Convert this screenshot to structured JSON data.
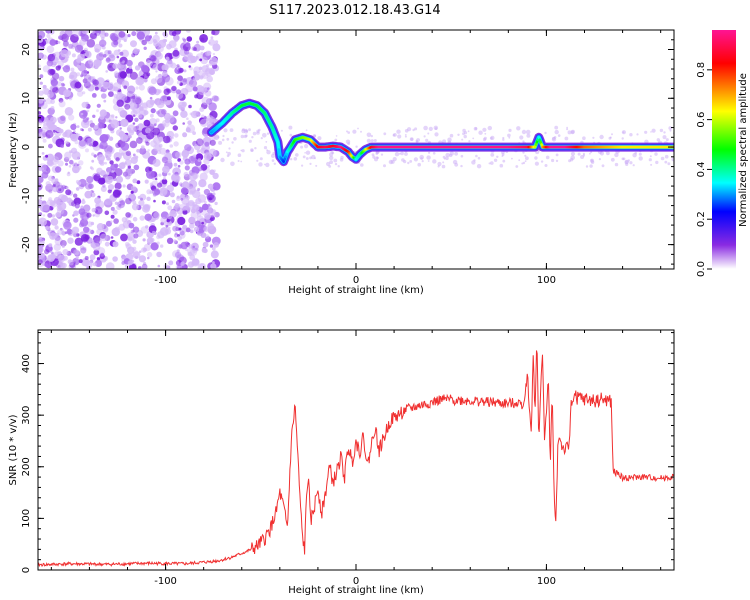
{
  "title": "S117.2023.012.18.43.G14",
  "colorbar": {
    "label": "Normalized spectral amplitude",
    "ticks": [
      "0.0",
      "0.2",
      "0.4",
      "0.6",
      "0.8"
    ],
    "tick_values": [
      0.0,
      0.2,
      0.4,
      0.6,
      0.8
    ],
    "range": [
      0,
      0.96
    ],
    "colormap": [
      "#ffffff",
      "#8a2be2",
      "#0000ff",
      "#00ffff",
      "#00ff00",
      "#ffff00",
      "#ff0000",
      "#ff1493"
    ]
  },
  "chart_data": [
    {
      "type": "heatmap",
      "xlabel": "Height of straight line (km)",
      "ylabel": "Frequency (Hz)",
      "xlim": [
        -167,
        167
      ],
      "ylim": [
        -25,
        24
      ],
      "xticks": [
        "-100",
        "0",
        "100"
      ],
      "xtick_values": [
        -100,
        0,
        100
      ],
      "yticks": [
        "-20",
        "-10",
        "0",
        "10",
        "20"
      ],
      "ytick_values": [
        -20,
        -10,
        0,
        10,
        20
      ],
      "noise_region_x": [
        -167,
        -73
      ],
      "ridge": {
        "x": [
          -76,
          -70,
          -65,
          -60,
          -56,
          -52,
          -48,
          -44,
          -41,
          -40,
          -38,
          -36,
          -32,
          -28,
          -24,
          -20,
          -16,
          -12,
          -8,
          -4,
          -2,
          0,
          2,
          5,
          8,
          12,
          20,
          40,
          60,
          80,
          90,
          94,
          96,
          98,
          102,
          110,
          120,
          140,
          160,
          167
        ],
        "y": [
          3,
          5,
          7,
          8.5,
          9,
          8.5,
          7,
          4,
          1,
          -2,
          -3,
          -1,
          1.5,
          2,
          1.5,
          0,
          0,
          0.2,
          0,
          -1,
          -2,
          -2.5,
          -1.5,
          -0.5,
          0,
          0,
          0,
          0,
          0,
          0,
          0,
          0,
          2,
          0,
          0,
          0,
          0,
          0,
          0,
          0
        ],
        "amplitude": [
          0.3,
          0.35,
          0.4,
          0.45,
          0.45,
          0.45,
          0.42,
          0.4,
          0.35,
          0.3,
          0.25,
          0.35,
          0.5,
          0.55,
          0.6,
          0.85,
          0.9,
          0.85,
          0.95,
          0.8,
          0.6,
          0.35,
          0.4,
          0.6,
          0.85,
          0.95,
          0.95,
          0.95,
          0.95,
          0.95,
          0.9,
          0.6,
          0.35,
          0.7,
          0.95,
          0.95,
          0.75,
          0.65,
          0.65,
          0.65
        ]
      }
    },
    {
      "type": "line",
      "xlabel": "Height of straight line (km)",
      "ylabel": "SNR (10 * v/v)",
      "xlim": [
        -167,
        167
      ],
      "ylim": [
        0,
        465
      ],
      "xticks": [
        "-100",
        "0",
        "100"
      ],
      "xtick_values": [
        -100,
        0,
        100
      ],
      "yticks": [
        "0",
        "100",
        "200",
        "300",
        "400"
      ],
      "ytick_values": [
        0,
        100,
        200,
        300,
        400
      ],
      "color": "#f03030",
      "series": [
        {
          "x": [
            -167,
            -150,
            -130,
            -110,
            -90,
            -80,
            -72,
            -65,
            -58,
            -52,
            -48,
            -45,
            -42,
            -40,
            -38,
            -36,
            -34,
            -32,
            -30,
            -29,
            -28,
            -27,
            -26,
            -25,
            -24,
            -22,
            -20,
            -18,
            -16,
            -14,
            -12,
            -10,
            -8,
            -6,
            -4,
            -2,
            0,
            2,
            4,
            6,
            8,
            10,
            12,
            15,
            18,
            22,
            26,
            30,
            35,
            40,
            45,
            50,
            60,
            70,
            80,
            85,
            88,
            90,
            92,
            93,
            94,
            95,
            96,
            97,
            98,
            99,
            100,
            101,
            102,
            103,
            104,
            105,
            106,
            107,
            108,
            110,
            112,
            113,
            115,
            120,
            125,
            130,
            134,
            135,
            136,
            137,
            140,
            150,
            160,
            167
          ],
          "y": [
            10,
            12,
            11,
            13,
            12,
            15,
            18,
            25,
            35,
            45,
            60,
            80,
            110,
            150,
            120,
            80,
            250,
            320,
            180,
            110,
            60,
            40,
            140,
            190,
            90,
            120,
            160,
            110,
            150,
            200,
            170,
            190,
            220,
            180,
            240,
            210,
            250,
            230,
            260,
            200,
            240,
            280,
            230,
            260,
            290,
            300,
            310,
            315,
            320,
            325,
            330,
            330,
            328,
            325,
            322,
            325,
            320,
            380,
            260,
            420,
            300,
            460,
            240,
            350,
            420,
            260,
            300,
            380,
            200,
            350,
            150,
            90,
            240,
            260,
            240,
            230,
            240,
            330,
            335,
            330,
            328,
            330,
            325,
            200,
            180,
            190,
            178,
            180,
            178,
            180
          ]
        }
      ]
    }
  ]
}
